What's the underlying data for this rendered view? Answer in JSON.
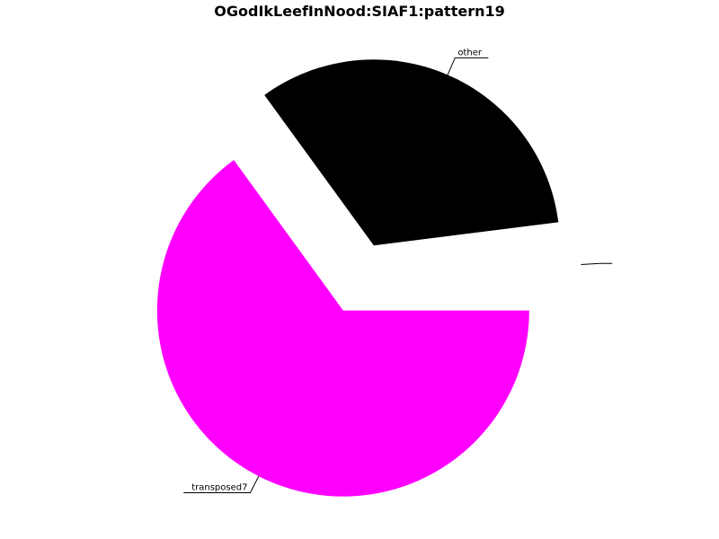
{
  "chart_data": {
    "type": "pie",
    "title": "OGodIkLeefInNood:SIAF1:pattern19",
    "slices": [
      {
        "label": "transposed7",
        "value": 65,
        "color": "#ff00ff"
      },
      {
        "label": "other",
        "value": 33,
        "color": "#000000"
      },
      {
        "label": "",
        "value": 2,
        "color": "#ffffff"
      }
    ],
    "legend": "none",
    "exploded": true
  }
}
